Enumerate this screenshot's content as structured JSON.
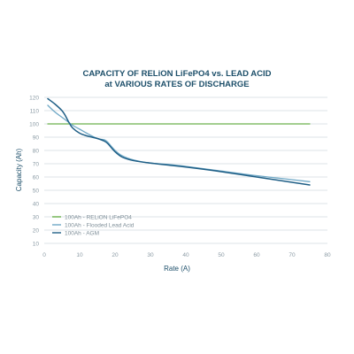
{
  "chart_data": {
    "type": "line",
    "title_line1": "CAPACITY OF RELiON LiFePO4 vs. LEAD ACID",
    "title_line2": "at VARIOUS RATES OF DISCHARGE",
    "xlabel": "Rate (A)",
    "ylabel": "Capacity (Ah)",
    "xlim": [
      0,
      80
    ],
    "ylim": [
      10,
      120
    ],
    "xticks": [
      0,
      10,
      20,
      30,
      40,
      50,
      60,
      70,
      80
    ],
    "yticks": [
      10,
      20,
      30,
      40,
      50,
      60,
      70,
      80,
      90,
      100,
      110,
      120
    ],
    "grid": "horizontal",
    "legend_position": "bottom-left",
    "series": [
      {
        "name": "100Ah - RELiON LiFePO4",
        "color": "#6ab04c",
        "x": [
          1,
          10,
          20,
          30,
          40,
          50,
          60,
          70,
          75
        ],
        "y": [
          100,
          100,
          100,
          100,
          100,
          100,
          100,
          100,
          100
        ]
      },
      {
        "name": "100Ah - Flooded Lead Acid",
        "color": "#6fa8c6",
        "x": [
          1,
          3,
          5,
          7,
          8,
          10,
          12,
          15,
          17,
          18,
          20,
          22,
          25,
          30,
          35,
          40,
          50,
          60,
          70,
          75
        ],
        "y": [
          114,
          109,
          105,
          101,
          99,
          96,
          93,
          89,
          88,
          86,
          80,
          76,
          73,
          70.5,
          69.5,
          68,
          64.5,
          61,
          58,
          56.5
        ]
      },
      {
        "name": "100Ah - AGM",
        "color": "#1f5f86",
        "x": [
          1,
          3,
          5,
          6,
          7,
          8,
          10,
          12,
          15,
          17,
          18,
          20,
          22,
          25,
          30,
          35,
          40,
          50,
          60,
          70,
          75
        ],
        "y": [
          119,
          115,
          110,
          106,
          101,
          97,
          93,
          91,
          89,
          87,
          85,
          79,
          75,
          72.5,
          70.5,
          69,
          67.5,
          64,
          60,
          56,
          54
        ]
      }
    ]
  }
}
